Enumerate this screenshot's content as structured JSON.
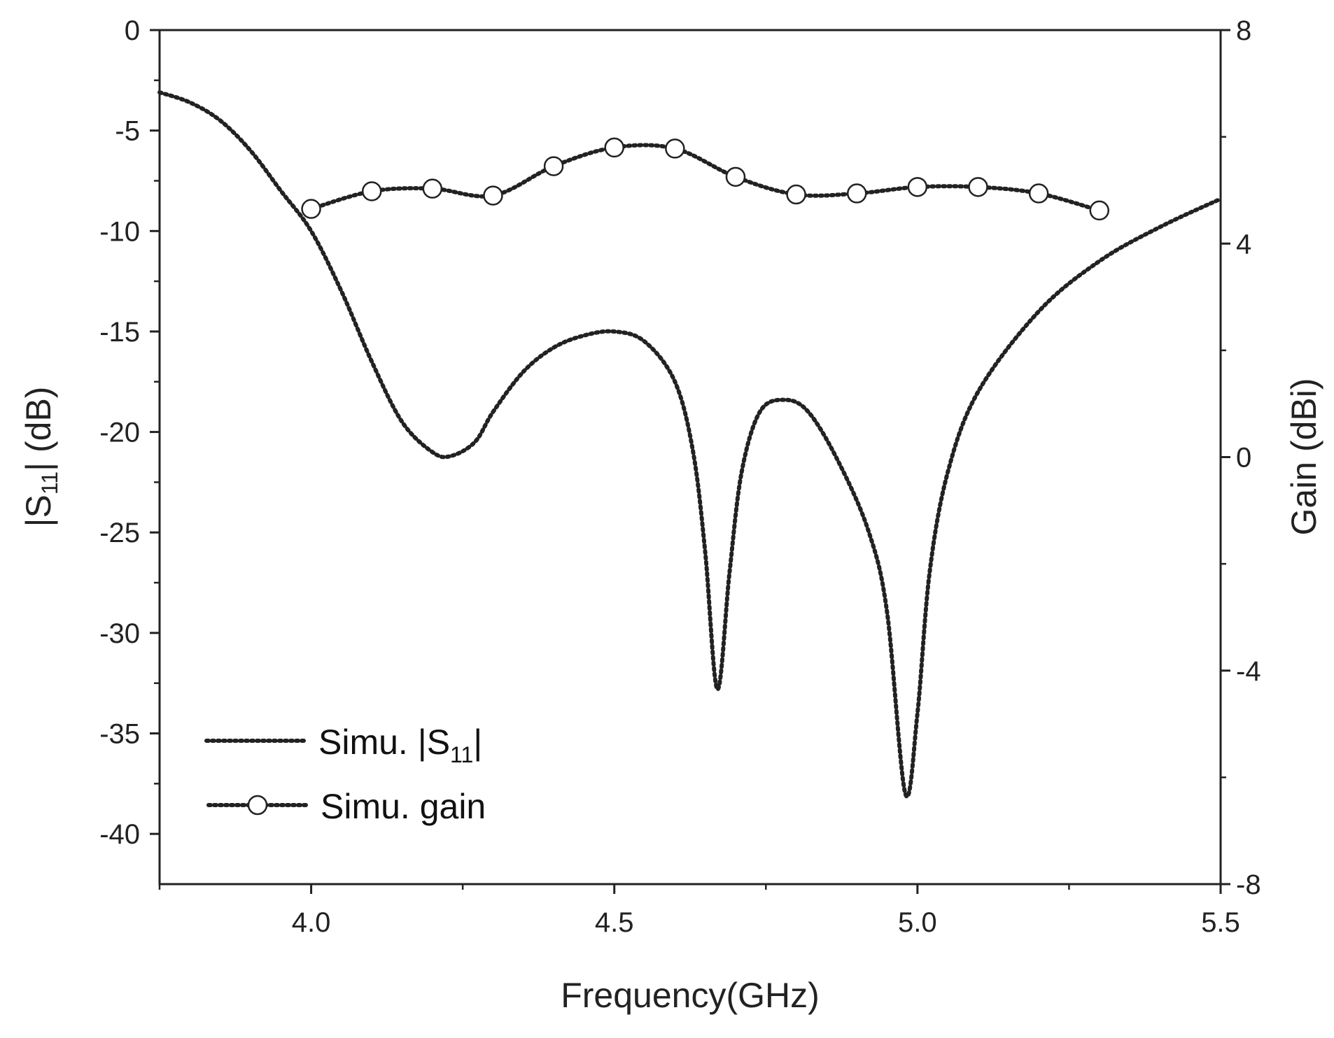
{
  "chart_data": {
    "type": "line",
    "xlabel": "Frequency(GHz)",
    "ylabel_left": {
      "base": "|S",
      "sub": "11",
      "tail": "| (dB)"
    },
    "ylabel_right": "Gain (dBi)",
    "xlim": [
      3.75,
      5.5
    ],
    "ylim_left": [
      -42.5,
      0
    ],
    "ylim_right": [
      -8,
      8
    ],
    "x_ticks": [
      "4.0",
      "4.5",
      "5.0",
      "5.5"
    ],
    "x_tick_values": [
      4.0,
      4.5,
      5.0,
      5.5
    ],
    "y_left_ticks": [
      "0",
      "-5",
      "-10",
      "-15",
      "-20",
      "-25",
      "-30",
      "-35",
      "-40"
    ],
    "y_left_tick_values": [
      0,
      -5,
      -10,
      -15,
      -20,
      -25,
      -30,
      -35,
      -40
    ],
    "y_right_ticks": [
      "8",
      "4",
      "0",
      "-4",
      "-8"
    ],
    "y_right_tick_values": [
      8,
      4,
      0,
      -4,
      -8
    ],
    "grid": false,
    "legend_position": "bottom-left",
    "series": [
      {
        "name": "Simu. |S11|",
        "legend": {
          "base": "Simu. |S",
          "sub": "11",
          "tail": "|"
        },
        "axis": "left",
        "style": "dotted",
        "x": [
          3.75,
          3.8,
          3.85,
          3.9,
          3.95,
          4.0,
          4.05,
          4.1,
          4.15,
          4.2,
          4.23,
          4.27,
          4.3,
          4.35,
          4.4,
          4.45,
          4.5,
          4.55,
          4.6,
          4.63,
          4.65,
          4.67,
          4.69,
          4.71,
          4.74,
          4.78,
          4.82,
          4.87,
          4.92,
          4.95,
          4.98,
          5.0,
          5.02,
          5.05,
          5.1,
          5.2,
          5.3,
          5.4,
          5.5
        ],
        "y": [
          -3.1,
          -3.6,
          -4.5,
          -6.0,
          -8.0,
          -10.0,
          -13.0,
          -16.5,
          -19.5,
          -21.0,
          -21.2,
          -20.5,
          -19.0,
          -17.0,
          -15.8,
          -15.2,
          -15.0,
          -15.5,
          -17.5,
          -21.0,
          -26.0,
          -32.8,
          -27.0,
          -22.0,
          -19.0,
          -18.4,
          -19.0,
          -21.5,
          -25.0,
          -29.0,
          -38.0,
          -34.0,
          -27.0,
          -22.0,
          -18.0,
          -14.0,
          -11.5,
          -9.8,
          -8.4
        ]
      },
      {
        "name": "Simu. gain",
        "legend": {
          "base": "Simu. gain",
          "sub": "",
          "tail": ""
        },
        "axis": "right",
        "style": "dotted-circle",
        "x": [
          4.0,
          4.1,
          4.2,
          4.3,
          4.4,
          4.5,
          4.6,
          4.7,
          4.8,
          4.9,
          5.0,
          5.1,
          5.2,
          5.3
        ],
        "y": [
          4.65,
          4.98,
          5.03,
          4.9,
          5.45,
          5.8,
          5.78,
          5.25,
          4.92,
          4.94,
          5.06,
          5.06,
          4.94,
          4.62
        ]
      }
    ]
  }
}
